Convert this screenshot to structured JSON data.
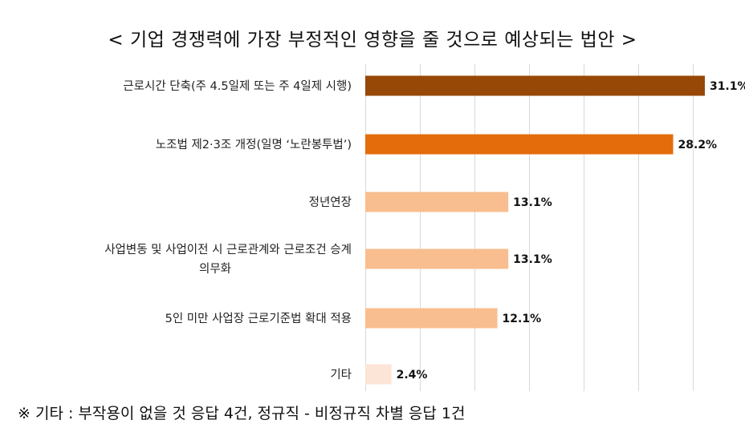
{
  "chart_data": {
    "type": "bar",
    "orientation": "horizontal",
    "title": "< 기업 경쟁력에 가장 부정적인 영향을 줄 것으로 예상되는 법안 >",
    "categories": [
      "근로시간 단축(주 4.5일제 또는 주 4일제 시행)",
      "노조법 제2·3조 개정(일명 ‘노란봉투법’)",
      "정년연장",
      "사업변동 및 사업이전 시 근로관계와 근로조건 승계 의무화",
      "5인 미만 사업장 근로기준법 확대 적용",
      "기타"
    ],
    "values": [
      31.1,
      28.2,
      13.1,
      13.1,
      12.1,
      2.4
    ],
    "value_labels": [
      "31.1%",
      "28.2%",
      "13.1%",
      "13.1%",
      "12.1%",
      "2.4%"
    ],
    "bar_colors": [
      "#974706",
      "#E46C0A",
      "#F8BE8F",
      "#F8BE8F",
      "#F8BE8F",
      "#FCE4D6"
    ],
    "xlim": [
      0,
      35
    ],
    "grid": true,
    "xlabel": "",
    "ylabel": ""
  },
  "footnote": "※ 기타 : 부작용이 없을 것 응답 4건, 정규직 - 비정규직 차별 응답 1건"
}
